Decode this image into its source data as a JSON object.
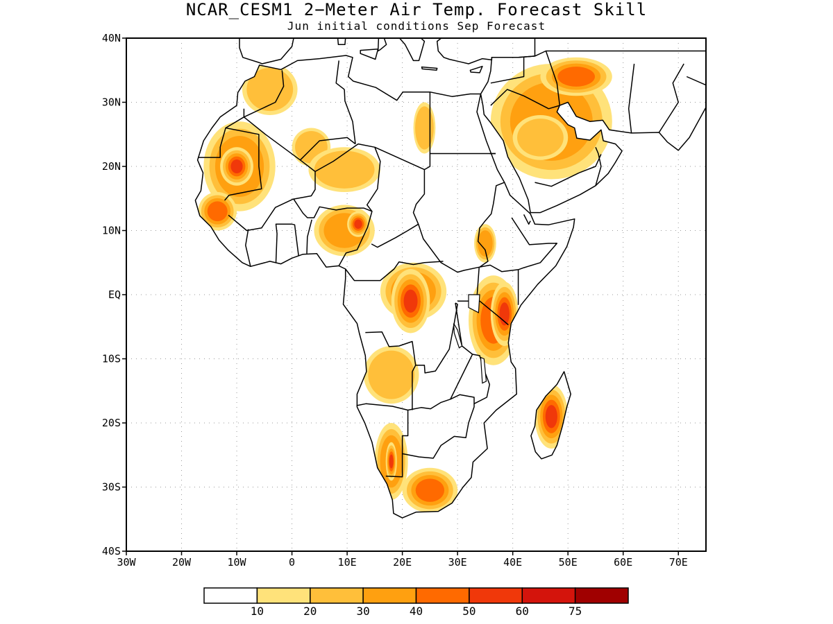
{
  "title": "NCAR_CESM1 2−Meter Air Temp. Forecast Skill",
  "subtitle": "Jun initial conditions  Sep Forecast",
  "map": {
    "lon_range": [
      -30,
      75
    ],
    "lat_range": [
      -40,
      40
    ],
    "lat_ticks": [
      {
        "value": 40,
        "label": "40N"
      },
      {
        "value": 30,
        "label": "30N"
      },
      {
        "value": 20,
        "label": "20N"
      },
      {
        "value": 10,
        "label": "10N"
      },
      {
        "value": 0,
        "label": "EQ"
      },
      {
        "value": -10,
        "label": "10S"
      },
      {
        "value": -20,
        "label": "20S"
      },
      {
        "value": -30,
        "label": "30S"
      },
      {
        "value": -40,
        "label": "40S"
      }
    ],
    "lon_ticks": [
      {
        "value": -30,
        "label": "30W"
      },
      {
        "value": -20,
        "label": "20W"
      },
      {
        "value": -10,
        "label": "10W"
      },
      {
        "value": 0,
        "label": "0"
      },
      {
        "value": 10,
        "label": "10E"
      },
      {
        "value": 20,
        "label": "20E"
      },
      {
        "value": 30,
        "label": "30E"
      },
      {
        "value": 40,
        "label": "40E"
      },
      {
        "value": 50,
        "label": "50E"
      },
      {
        "value": 60,
        "label": "60E"
      },
      {
        "value": 70,
        "label": "70E"
      }
    ],
    "grid": "dotted"
  },
  "colorbar": {
    "boxes": [
      {
        "color": "#ffffff"
      },
      {
        "color": "#ffe27a"
      },
      {
        "color": "#ffbf3a"
      },
      {
        "color": "#ffa010"
      },
      {
        "color": "#ff6a00"
      },
      {
        "color": "#f0380a"
      },
      {
        "color": "#d4140c"
      },
      {
        "color": "#a00000"
      }
    ],
    "labels": [
      "10",
      "20",
      "30",
      "40",
      "50",
      "60",
      "75"
    ]
  },
  "skill_regions": [
    {
      "lon": [
        -16,
        -3
      ],
      "lat": [
        13,
        27
      ],
      "level": 3
    },
    {
      "lon": [
        -13,
        -7
      ],
      "lat": [
        17,
        23
      ],
      "level": 5
    },
    {
      "lon": [
        -17,
        -10
      ],
      "lat": [
        10,
        16
      ],
      "level": 4
    },
    {
      "lon": [
        -9,
        1
      ],
      "lat": [
        28,
        36
      ],
      "level": 2
    },
    {
      "lon": [
        0,
        7
      ],
      "lat": [
        20,
        26
      ],
      "level": 2
    },
    {
      "lon": [
        3,
        16
      ],
      "lat": [
        16,
        23
      ],
      "level": 2
    },
    {
      "lon": [
        4,
        15
      ],
      "lat": [
        6,
        14
      ],
      "level": 3
    },
    {
      "lon": [
        10,
        14
      ],
      "lat": [
        9,
        13
      ],
      "level": 5
    },
    {
      "lon": [
        22,
        26
      ],
      "lat": [
        22,
        30
      ],
      "level": 2
    },
    {
      "lon": [
        36,
        58
      ],
      "lat": [
        18,
        36
      ],
      "level": 3
    },
    {
      "lon": [
        45,
        58
      ],
      "lat": [
        31,
        37
      ],
      "level": 4
    },
    {
      "lon": [
        40,
        50
      ],
      "lat": [
        21,
        28
      ],
      "level": 2
    },
    {
      "lon": [
        16,
        28
      ],
      "lat": [
        -4,
        5
      ],
      "level": 3
    },
    {
      "lon": [
        18,
        25
      ],
      "lat": [
        -6,
        4
      ],
      "level": 5
    },
    {
      "lon": [
        32,
        41
      ],
      "lat": [
        -11,
        3
      ],
      "level": 4
    },
    {
      "lon": [
        36,
        41
      ],
      "lat": [
        -8,
        2
      ],
      "level": 5
    },
    {
      "lon": [
        33,
        37
      ],
      "lat": [
        5,
        11
      ],
      "level": 3
    },
    {
      "lon": [
        13,
        23
      ],
      "lat": [
        -17,
        -8
      ],
      "level": 2
    },
    {
      "lon": [
        15,
        21
      ],
      "lat": [
        -32,
        -20
      ],
      "level": 3
    },
    {
      "lon": [
        17,
        19
      ],
      "lat": [
        -29,
        -23
      ],
      "level": 5
    },
    {
      "lon": [
        20,
        30
      ],
      "lat": [
        -34,
        -27
      ],
      "level": 4
    },
    {
      "lon": [
        44,
        50
      ],
      "lat": [
        -24,
        -14
      ],
      "level": 5
    }
  ]
}
